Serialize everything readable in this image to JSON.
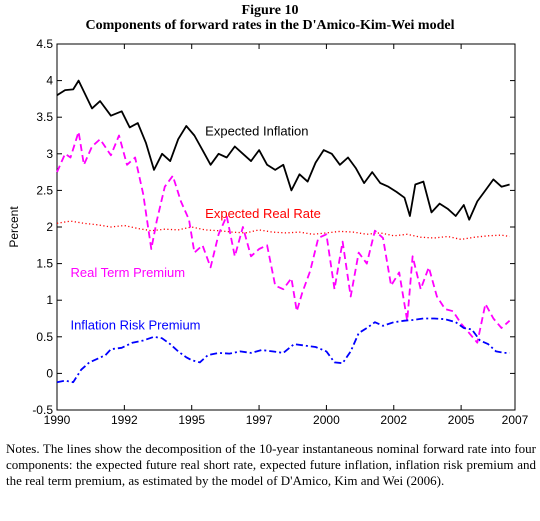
{
  "figure": {
    "number": "Figure 10",
    "title": "Components of forward rates in the D'Amico-Kim-Wei model",
    "notes": "Notes. The lines show the decomposition of the 10-year instantaneous nominal forward rate into four components: the expected future real short rate, expected future inflation, inflation risk premium and the real term premium, as estimated by the model of D'Amico, Kim and Wei (2006)."
  },
  "chart_data": {
    "type": "line",
    "title": "",
    "xlabel": "",
    "ylabel": "Percent",
    "xlim": [
      1990,
      2007
    ],
    "ylim": [
      -0.5,
      4.5
    ],
    "xticks": [
      "1990",
      "1992",
      "1995",
      "1997",
      "2000",
      "2002",
      "2005",
      "2007"
    ],
    "xtick_values": [
      1990,
      1992.5,
      1995,
      1997.5,
      2000,
      2002.5,
      2005,
      2007.5
    ],
    "yticks": [
      "-0.5",
      "0",
      "0.5",
      "1",
      "1.5",
      "2",
      "2.5",
      "3",
      "3.5",
      "4",
      "4.5"
    ],
    "ytick_values": [
      -0.5,
      0,
      0.5,
      1,
      1.5,
      2,
      2.5,
      3,
      3.5,
      4,
      4.5
    ],
    "grid": false,
    "series": [
      {
        "name": "Expected Inflation",
        "color": "#000000",
        "style": "solid",
        "label_at": [
          1995.5,
          3.25
        ],
        "x": [
          1990.0,
          1990.3,
          1990.6,
          1990.8,
          1991.0,
          1991.3,
          1991.6,
          1992.0,
          1992.4,
          1992.7,
          1993.0,
          1993.3,
          1993.6,
          1993.9,
          1994.2,
          1994.5,
          1994.8,
          1995.1,
          1995.4,
          1995.7,
          1996.0,
          1996.3,
          1996.6,
          1996.9,
          1997.2,
          1997.5,
          1997.8,
          1998.1,
          1998.4,
          1998.7,
          1999.0,
          1999.3,
          1999.6,
          1999.9,
          2000.2,
          2000.5,
          2000.8,
          2001.1,
          2001.4,
          2001.7,
          2002.0,
          2002.3,
          2002.6,
          2002.9,
          2003.1,
          2003.3,
          2003.6,
          2003.9,
          2004.2,
          2004.5,
          2004.8,
          2005.1,
          2005.3,
          2005.6,
          2005.9,
          2006.2,
          2006.5,
          2006.8
        ],
        "y": [
          3.8,
          3.87,
          3.88,
          4.0,
          3.85,
          3.62,
          3.72,
          3.52,
          3.58,
          3.36,
          3.42,
          3.15,
          2.78,
          3.0,
          2.9,
          3.2,
          3.38,
          3.25,
          3.05,
          2.85,
          3.0,
          2.95,
          3.1,
          3.0,
          2.9,
          3.05,
          2.85,
          2.78,
          2.85,
          2.5,
          2.72,
          2.62,
          2.88,
          3.05,
          3.0,
          2.85,
          2.95,
          2.8,
          2.6,
          2.75,
          2.6,
          2.55,
          2.48,
          2.4,
          2.15,
          2.58,
          2.62,
          2.2,
          2.32,
          2.25,
          2.15,
          2.3,
          2.1,
          2.35,
          2.5,
          2.65,
          2.55,
          2.58
        ]
      },
      {
        "name": "Expected Real Rate",
        "color": "#ff0000",
        "style": "dotted",
        "label_at": [
          1995.5,
          2.12
        ],
        "x": [
          1990.0,
          1990.5,
          1991.0,
          1991.5,
          1992.0,
          1992.5,
          1993.0,
          1993.5,
          1994.0,
          1994.5,
          1995.0,
          1995.5,
          1996.0,
          1996.5,
          1997.0,
          1997.5,
          1998.0,
          1998.5,
          1999.0,
          1999.5,
          2000.0,
          2000.5,
          2001.0,
          2001.5,
          2002.0,
          2002.5,
          2003.0,
          2003.5,
          2004.0,
          2004.5,
          2005.0,
          2005.5,
          2006.0,
          2006.5,
          2006.8
        ],
        "y": [
          2.05,
          2.08,
          2.05,
          2.03,
          2.0,
          2.02,
          1.98,
          1.95,
          1.97,
          1.96,
          2.0,
          1.96,
          1.95,
          1.93,
          1.92,
          1.96,
          1.93,
          1.92,
          1.93,
          1.9,
          1.92,
          1.94,
          1.93,
          1.9,
          1.92,
          1.88,
          1.9,
          1.86,
          1.85,
          1.87,
          1.83,
          1.86,
          1.88,
          1.89,
          1.87
        ]
      },
      {
        "name": "Real Term Premium",
        "color": "#ff00ff",
        "style": "dashed",
        "label_at": [
          1990.5,
          1.32
        ],
        "x": [
          1990.0,
          1990.3,
          1990.5,
          1990.8,
          1991.0,
          1991.3,
          1991.6,
          1992.0,
          1992.3,
          1992.6,
          1992.9,
          1993.2,
          1993.5,
          1993.7,
          1994.0,
          1994.3,
          1994.6,
          1994.9,
          1995.1,
          1995.4,
          1995.7,
          1996.0,
          1996.3,
          1996.6,
          1996.9,
          1997.2,
          1997.5,
          1997.8,
          1998.1,
          1998.4,
          1998.7,
          1998.9,
          1999.1,
          1999.4,
          1999.7,
          2000.0,
          2000.3,
          2000.6,
          2000.9,
          2001.2,
          2001.5,
          2001.8,
          2002.1,
          2002.4,
          2002.7,
          2003.0,
          2003.2,
          2003.5,
          2003.8,
          2004.1,
          2004.4,
          2004.7,
          2005.0,
          2005.3,
          2005.6,
          2005.9,
          2006.2,
          2006.5,
          2006.8
        ],
        "y": [
          2.75,
          3.0,
          2.95,
          3.3,
          2.85,
          3.1,
          3.2,
          2.98,
          3.25,
          2.85,
          2.95,
          2.45,
          1.7,
          2.08,
          2.55,
          2.7,
          2.35,
          2.1,
          1.65,
          1.75,
          1.45,
          1.9,
          2.15,
          1.6,
          2.0,
          1.6,
          1.7,
          1.75,
          1.2,
          1.15,
          1.3,
          0.85,
          1.1,
          1.4,
          1.85,
          1.9,
          1.15,
          1.8,
          1.05,
          1.65,
          1.5,
          1.95,
          1.85,
          1.2,
          1.38,
          0.72,
          1.6,
          1.15,
          1.45,
          1.05,
          0.88,
          0.85,
          0.68,
          0.55,
          0.42,
          0.95,
          0.75,
          0.62,
          0.72
        ]
      },
      {
        "name": "Inflation Risk Premium",
        "color": "#0000ff",
        "style": "dashdot",
        "label_at": [
          1990.5,
          0.6
        ],
        "x": [
          1990.0,
          1990.3,
          1990.6,
          1990.9,
          1991.2,
          1991.5,
          1991.8,
          1992.0,
          1992.4,
          1992.8,
          1993.2,
          1993.6,
          1993.9,
          1994.2,
          1994.5,
          1994.8,
          1995.0,
          1995.3,
          1995.6,
          1996.0,
          1996.4,
          1996.8,
          1997.2,
          1997.6,
          1998.0,
          1998.4,
          1998.8,
          1999.2,
          1999.6,
          2000.0,
          2000.3,
          2000.6,
          2000.9,
          2001.2,
          2001.5,
          2001.8,
          2002.1,
          2002.5,
          2002.9,
          2003.2,
          2003.6,
          2004.0,
          2004.4,
          2004.8,
          2005.1,
          2005.4,
          2005.7,
          2006.0,
          2006.3,
          2006.6,
          2006.8
        ],
        "y": [
          -0.12,
          -0.1,
          -0.12,
          0.05,
          0.15,
          0.2,
          0.25,
          0.33,
          0.35,
          0.42,
          0.45,
          0.5,
          0.48,
          0.4,
          0.3,
          0.22,
          0.18,
          0.15,
          0.25,
          0.28,
          0.27,
          0.3,
          0.28,
          0.32,
          0.3,
          0.28,
          0.4,
          0.38,
          0.36,
          0.3,
          0.15,
          0.14,
          0.3,
          0.55,
          0.62,
          0.7,
          0.65,
          0.7,
          0.72,
          0.73,
          0.75,
          0.75,
          0.74,
          0.7,
          0.62,
          0.6,
          0.45,
          0.4,
          0.3,
          0.28,
          0.28
        ]
      }
    ]
  }
}
